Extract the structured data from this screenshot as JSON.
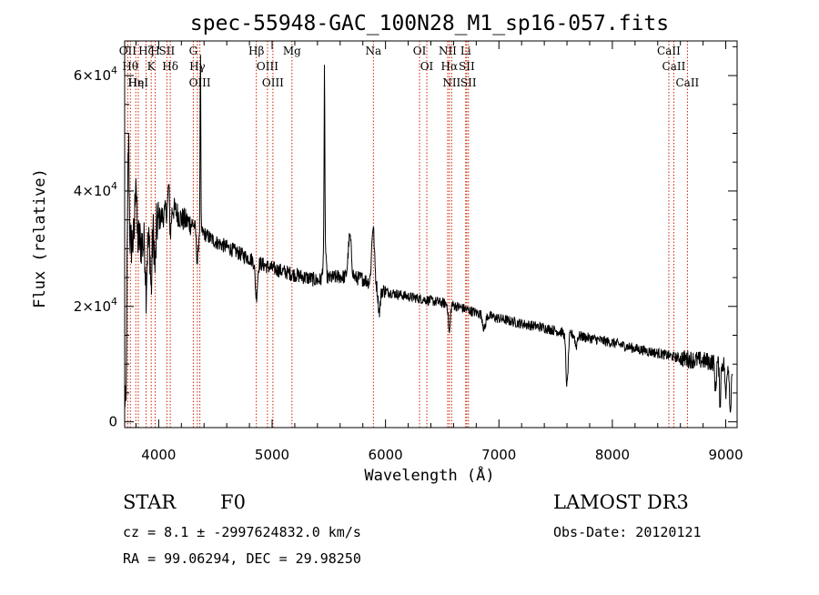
{
  "chart_data": {
    "type": "line",
    "title": "spec-55948-GAC_100N28_M1_sp16-057.fits",
    "xlabel": "Wavelength (Å)",
    "ylabel": "Flux (relative)",
    "xlim": [
      3700,
      9100
    ],
    "ylim": [
      -1000,
      66000
    ],
    "xticks": [
      {
        "value": 4000,
        "label": "4000"
      },
      {
        "value": 5000,
        "label": "5000"
      },
      {
        "value": 6000,
        "label": "6000"
      },
      {
        "value": 7000,
        "label": "7000"
      },
      {
        "value": 8000,
        "label": "8000"
      },
      {
        "value": 9000,
        "label": "9000"
      }
    ],
    "yticks": [
      {
        "value": 0,
        "mantissa": "0",
        "exponent": ""
      },
      {
        "value": 20000,
        "mantissa": "2×10",
        "exponent": "4"
      },
      {
        "value": 40000,
        "mantissa": "4×10",
        "exponent": "4"
      },
      {
        "value": 60000,
        "mantissa": "6×10",
        "exponent": "4"
      }
    ],
    "spectral_lines": [
      {
        "wave": 3727,
        "labels": [
          "OII"
        ]
      },
      {
        "wave": 3750,
        "labels": [
          "Hθ"
        ]
      },
      {
        "wave": 3798,
        "labels": [
          "Hη"
        ]
      },
      {
        "wave": 3820,
        "labels": [
          "HeI"
        ]
      },
      {
        "wave": 3889,
        "labels": [
          "Hζ"
        ]
      },
      {
        "wave": 3934,
        "labels": [
          "K"
        ]
      },
      {
        "wave": 3969,
        "labels": [
          "H"
        ]
      },
      {
        "wave": 4072,
        "labels": [
          "SII"
        ]
      },
      {
        "wave": 4102,
        "labels": [
          "Hδ"
        ]
      },
      {
        "wave": 4305,
        "labels": [
          "G"
        ]
      },
      {
        "wave": 4341,
        "labels": [
          "Hγ"
        ]
      },
      {
        "wave": 4363,
        "labels": [
          "OIII"
        ]
      },
      {
        "wave": 4861,
        "labels": [
          "Hβ"
        ]
      },
      {
        "wave": 4959,
        "labels": [
          "OIII"
        ]
      },
      {
        "wave": 5007,
        "labels": [
          "OIII"
        ]
      },
      {
        "wave": 5175,
        "labels": [
          "Mg"
        ]
      },
      {
        "wave": 5893,
        "labels": [
          "Na"
        ]
      },
      {
        "wave": 6300,
        "labels": [
          "OI"
        ]
      },
      {
        "wave": 6364,
        "labels": [
          "OI"
        ]
      },
      {
        "wave": 6548,
        "labels": [
          "NII"
        ]
      },
      {
        "wave": 6563,
        "labels": [
          "Hα"
        ]
      },
      {
        "wave": 6583,
        "labels": [
          "NII"
        ]
      },
      {
        "wave": 6707,
        "labels": [
          "Li"
        ]
      },
      {
        "wave": 6716,
        "labels": [
          "SII"
        ]
      },
      {
        "wave": 6731,
        "labels": [
          "SII"
        ]
      },
      {
        "wave": 8498,
        "labels": [
          "CaII"
        ]
      },
      {
        "wave": 8542,
        "labels": [
          "CaII"
        ]
      },
      {
        "wave": 8662,
        "labels": [
          "CaII"
        ]
      }
    ],
    "continuum": [
      [
        3700,
        1000
      ],
      [
        3712,
        22000
      ],
      [
        3730,
        30000
      ],
      [
        3760,
        31000
      ],
      [
        3800,
        32000
      ],
      [
        3850,
        31000
      ],
      [
        3900,
        30000
      ],
      [
        3950,
        32500
      ],
      [
        4000,
        35000
      ],
      [
        4050,
        36000
      ],
      [
        4100,
        37500
      ],
      [
        4150,
        36500
      ],
      [
        4200,
        35200
      ],
      [
        4300,
        34200
      ],
      [
        4400,
        32600
      ],
      [
        4500,
        31200
      ],
      [
        4600,
        30300
      ],
      [
        4700,
        29300
      ],
      [
        4800,
        28300
      ],
      [
        4900,
        27400
      ],
      [
        5000,
        26600
      ],
      [
        5200,
        25500
      ],
      [
        5400,
        24500
      ],
      [
        5600,
        25200
      ],
      [
        5800,
        24800
      ],
      [
        6000,
        22600
      ],
      [
        6200,
        21700
      ],
      [
        6400,
        21000
      ],
      [
        6600,
        20200
      ],
      [
        6800,
        18900
      ],
      [
        7000,
        17900
      ],
      [
        7200,
        17000
      ],
      [
        7400,
        16300
      ],
      [
        7600,
        15300
      ],
      [
        7800,
        14500
      ],
      [
        8000,
        13700
      ],
      [
        8200,
        12700
      ],
      [
        8400,
        11900
      ],
      [
        8600,
        11000
      ],
      [
        8800,
        10600
      ],
      [
        9000,
        10000
      ],
      [
        9060,
        9000
      ]
    ],
    "features": [
      {
        "center": 3712,
        "depth": -20000,
        "width": 4
      },
      {
        "center": 3734,
        "depth": 18000,
        "width": 6
      },
      {
        "center": 3798,
        "depth": 12000,
        "width": 6
      },
      {
        "center": 3889,
        "depth": -7000,
        "width": 5
      },
      {
        "center": 3934,
        "depth": -9000,
        "width": 6
      },
      {
        "center": 3969,
        "depth": -7000,
        "width": 6
      },
      {
        "center": 4102,
        "depth": -5000,
        "width": 8
      },
      {
        "center": 4089,
        "depth": 5000,
        "width": 6
      },
      {
        "center": 4341,
        "depth": -6000,
        "width": 8
      },
      {
        "center": 4368,
        "depth": 31000,
        "width": 3
      },
      {
        "center": 4861,
        "depth": -6000,
        "width": 10
      },
      {
        "center": 5462,
        "depth": 30000,
        "width": 3
      },
      {
        "center": 5462,
        "depth": 8000,
        "width": 10
      },
      {
        "center": 5685,
        "depth": 7000,
        "width": 14
      },
      {
        "center": 5890,
        "depth": 10000,
        "width": 12
      },
      {
        "center": 5945,
        "depth": -4000,
        "width": 10
      },
      {
        "center": 6563,
        "depth": -5000,
        "width": 8
      },
      {
        "center": 6870,
        "depth": -2500,
        "width": 12
      },
      {
        "center": 7600,
        "depth": -9000,
        "width": 10
      },
      {
        "center": 7680,
        "depth": -2000,
        "width": 8
      },
      {
        "center": 8910,
        "depth": -5000,
        "width": 6
      },
      {
        "center": 8950,
        "depth": -7000,
        "width": 6
      },
      {
        "center": 9000,
        "depth": -6000,
        "width": 6
      },
      {
        "center": 9040,
        "depth": -8000,
        "width": 6
      }
    ],
    "noise": [
      {
        "from": 3700,
        "to": 4000,
        "amplitude": 4500
      },
      {
        "from": 4000,
        "to": 4300,
        "amplitude": 2200
      },
      {
        "from": 4300,
        "to": 6000,
        "amplitude": 1300
      },
      {
        "from": 6000,
        "to": 8600,
        "amplitude": 900
      },
      {
        "from": 8600,
        "to": 9100,
        "amplitude": 1600
      }
    ]
  },
  "info": {
    "object_class": "STAR",
    "subclass": "F0",
    "survey": "LAMOST DR3",
    "redshift": "cz = 8.1 ± -2997624832.0 km/s",
    "obs_date": "Obs-Date: 20120121",
    "coords": "RA =  99.06294, DEC =  29.98250"
  },
  "colors": {
    "axis": "#000000",
    "spectrum": "#000000",
    "line_marker": "#cc2200"
  }
}
